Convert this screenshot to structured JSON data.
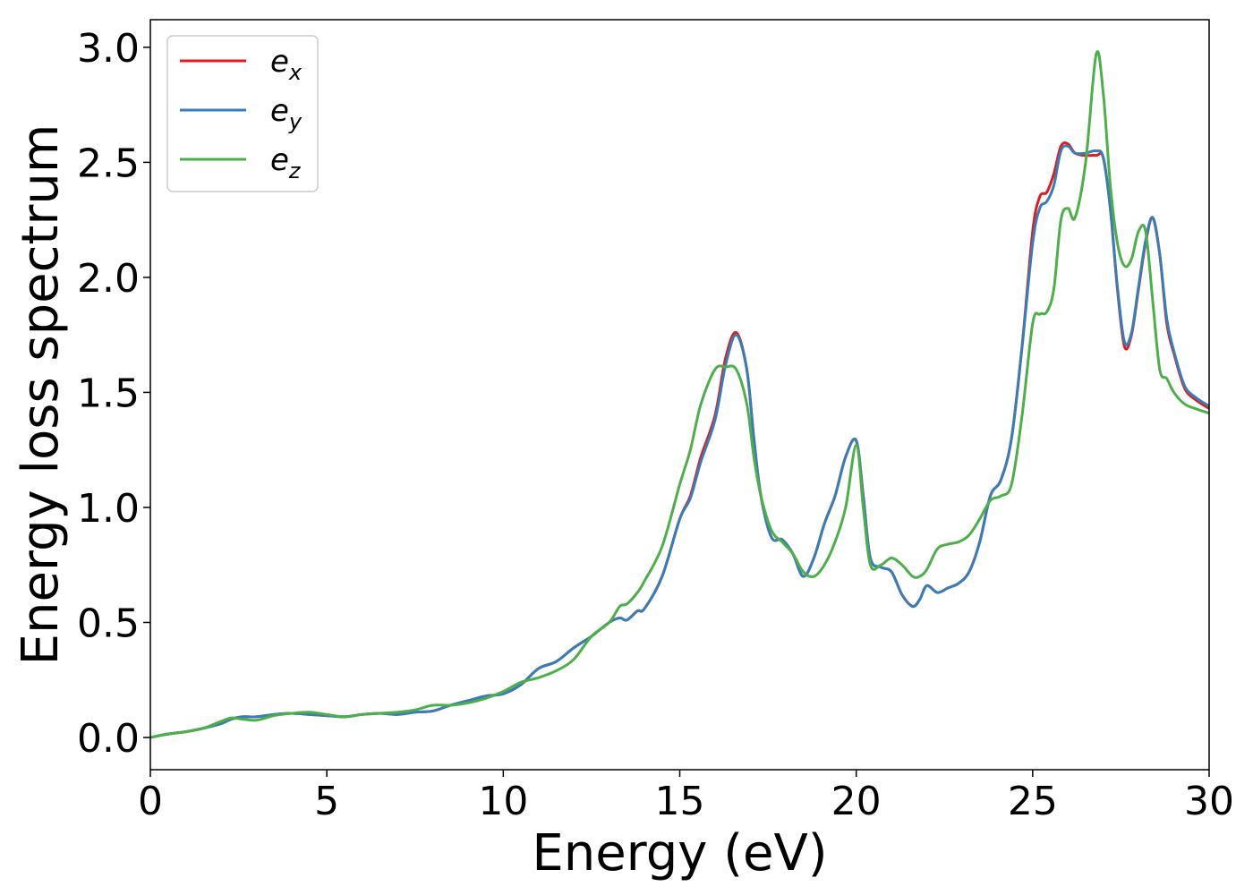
{
  "chart_data": {
    "type": "line",
    "xlabel": "Energy (eV)",
    "ylabel": "Energy loss spectrum",
    "xlim": [
      0,
      30
    ],
    "ylim": [
      -0.14,
      3.12
    ],
    "xticks": [
      0,
      5,
      10,
      15,
      20,
      25,
      30
    ],
    "xtick_labels": [
      "0",
      "5",
      "10",
      "15",
      "20",
      "25",
      "30"
    ],
    "yticks": [
      0.0,
      0.5,
      1.0,
      1.5,
      2.0,
      2.5,
      3.0
    ],
    "ytick_labels": [
      "0.0",
      "0.5",
      "1.0",
      "1.5",
      "2.0",
      "2.5",
      "3.0"
    ],
    "grid": false,
    "legend_position": "top-left",
    "series": [
      {
        "name": "e_x",
        "label_base": "e",
        "label_sub": "x",
        "color": "#e41a1c",
        "x": [
          0,
          0.5,
          1,
          1.5,
          2,
          2.3,
          2.6,
          3,
          3.5,
          4,
          4.5,
          5,
          5.5,
          6,
          6.5,
          7,
          7.5,
          8,
          8.5,
          9,
          9.5,
          10,
          10.5,
          11,
          11.5,
          12,
          12.5,
          13,
          13.3,
          13.5,
          13.8,
          14,
          14.5,
          15,
          15.3,
          15.6,
          16,
          16.3,
          16.6,
          16.9,
          17.1,
          17.3,
          17.6,
          17.9,
          18.2,
          18.5,
          18.8,
          19.1,
          19.4,
          19.7,
          20,
          20.2,
          20.4,
          20.7,
          21,
          21.3,
          21.6,
          21.8,
          22,
          22.3,
          22.6,
          22.9,
          23.2,
          23.5,
          23.8,
          24.1,
          24.4,
          24.7,
          25,
          25.2,
          25.4,
          25.6,
          25.8,
          26,
          26.2,
          26.5,
          26.8,
          27,
          27.2,
          27.4,
          27.6,
          27.8,
          28,
          28.2,
          28.4,
          28.6,
          28.8,
          29,
          29.3,
          29.6,
          30
        ],
        "y": [
          0,
          0.015,
          0.025,
          0.04,
          0.06,
          0.08,
          0.09,
          0.09,
          0.1,
          0.105,
          0.1,
          0.095,
          0.09,
          0.1,
          0.105,
          0.1,
          0.11,
          0.115,
          0.14,
          0.16,
          0.18,
          0.19,
          0.23,
          0.3,
          0.33,
          0.39,
          0.44,
          0.5,
          0.52,
          0.51,
          0.55,
          0.56,
          0.7,
          0.95,
          1.05,
          1.22,
          1.4,
          1.65,
          1.76,
          1.6,
          1.3,
          1.05,
          0.87,
          0.86,
          0.8,
          0.7,
          0.78,
          0.93,
          1.05,
          1.22,
          1.29,
          1.05,
          0.78,
          0.74,
          0.72,
          0.62,
          0.57,
          0.6,
          0.66,
          0.63,
          0.65,
          0.67,
          0.72,
          0.85,
          1.05,
          1.12,
          1.3,
          1.7,
          2.2,
          2.35,
          2.37,
          2.45,
          2.57,
          2.58,
          2.54,
          2.53,
          2.53,
          2.52,
          2.3,
          1.95,
          1.7,
          1.75,
          1.95,
          2.15,
          2.26,
          2.1,
          1.8,
          1.67,
          1.52,
          1.47,
          1.43
        ]
      },
      {
        "name": "e_y",
        "label_base": "e",
        "label_sub": "y",
        "color": "#377eb8",
        "x": [
          0,
          0.5,
          1,
          1.5,
          2,
          2.3,
          2.6,
          3,
          3.5,
          4,
          4.5,
          5,
          5.5,
          6,
          6.5,
          7,
          7.5,
          8,
          8.5,
          9,
          9.5,
          10,
          10.5,
          11,
          11.5,
          12,
          12.5,
          13,
          13.3,
          13.5,
          13.8,
          14,
          14.5,
          15,
          15.3,
          15.6,
          16,
          16.3,
          16.6,
          16.9,
          17.1,
          17.3,
          17.6,
          17.9,
          18.2,
          18.5,
          18.8,
          19.1,
          19.4,
          19.7,
          20,
          20.2,
          20.4,
          20.7,
          21,
          21.3,
          21.6,
          21.8,
          22,
          22.3,
          22.6,
          22.9,
          23.2,
          23.5,
          23.8,
          24.1,
          24.4,
          24.7,
          25,
          25.2,
          25.4,
          25.6,
          25.8,
          26,
          26.2,
          26.5,
          26.8,
          27,
          27.2,
          27.4,
          27.6,
          27.8,
          28,
          28.2,
          28.4,
          28.6,
          28.8,
          29,
          29.3,
          29.6,
          30
        ],
        "y": [
          0,
          0.015,
          0.025,
          0.04,
          0.06,
          0.08,
          0.09,
          0.09,
          0.1,
          0.105,
          0.1,
          0.095,
          0.09,
          0.1,
          0.105,
          0.1,
          0.11,
          0.115,
          0.14,
          0.16,
          0.18,
          0.19,
          0.23,
          0.3,
          0.33,
          0.39,
          0.44,
          0.5,
          0.52,
          0.51,
          0.55,
          0.56,
          0.7,
          0.95,
          1.04,
          1.2,
          1.38,
          1.62,
          1.75,
          1.6,
          1.3,
          1.05,
          0.87,
          0.86,
          0.8,
          0.7,
          0.78,
          0.93,
          1.05,
          1.22,
          1.29,
          1.05,
          0.78,
          0.74,
          0.72,
          0.62,
          0.57,
          0.6,
          0.66,
          0.63,
          0.65,
          0.67,
          0.72,
          0.85,
          1.05,
          1.12,
          1.3,
          1.7,
          2.15,
          2.3,
          2.33,
          2.4,
          2.55,
          2.57,
          2.54,
          2.54,
          2.55,
          2.52,
          2.3,
          1.96,
          1.72,
          1.76,
          1.96,
          2.16,
          2.26,
          2.1,
          1.82,
          1.68,
          1.53,
          1.48,
          1.44
        ]
      },
      {
        "name": "e_z",
        "label_base": "e",
        "label_sub": "z",
        "color": "#4daf4a",
        "x": [
          0,
          0.5,
          1,
          1.5,
          2,
          2.3,
          2.6,
          3,
          3.5,
          4,
          4.5,
          5,
          5.5,
          6,
          6.5,
          7,
          7.5,
          8,
          8.5,
          9,
          9.5,
          10,
          10.5,
          11,
          11.5,
          12,
          12.5,
          13,
          13.3,
          13.5,
          13.8,
          14,
          14.5,
          15,
          15.3,
          15.6,
          16,
          16.3,
          16.6,
          16.9,
          17.1,
          17.3,
          17.6,
          17.9,
          18.2,
          18.5,
          18.8,
          19.1,
          19.4,
          19.7,
          20,
          20.2,
          20.4,
          20.7,
          21,
          21.3,
          21.6,
          21.8,
          22,
          22.3,
          22.6,
          22.9,
          23.2,
          23.5,
          23.8,
          24.1,
          24.4,
          24.7,
          25,
          25.2,
          25.4,
          25.6,
          25.8,
          26,
          26.2,
          26.5,
          26.8,
          27,
          27.2,
          27.4,
          27.6,
          27.8,
          28,
          28.2,
          28.4,
          28.6,
          28.8,
          29,
          29.3,
          29.6,
          30
        ],
        "y": [
          0,
          0.015,
          0.025,
          0.04,
          0.07,
          0.085,
          0.08,
          0.075,
          0.095,
          0.105,
          0.11,
          0.1,
          0.09,
          0.1,
          0.105,
          0.11,
          0.12,
          0.14,
          0.14,
          0.15,
          0.17,
          0.2,
          0.24,
          0.26,
          0.29,
          0.34,
          0.44,
          0.5,
          0.57,
          0.58,
          0.63,
          0.68,
          0.83,
          1.1,
          1.25,
          1.45,
          1.6,
          1.61,
          1.6,
          1.45,
          1.22,
          1.05,
          0.9,
          0.85,
          0.8,
          0.72,
          0.7,
          0.75,
          0.85,
          1.0,
          1.27,
          1.0,
          0.75,
          0.75,
          0.78,
          0.75,
          0.7,
          0.7,
          0.73,
          0.82,
          0.84,
          0.85,
          0.88,
          0.95,
          1.03,
          1.05,
          1.1,
          1.4,
          1.8,
          1.84,
          1.85,
          1.95,
          2.25,
          2.3,
          2.26,
          2.5,
          2.97,
          2.8,
          2.4,
          2.15,
          2.05,
          2.08,
          2.2,
          2.2,
          1.9,
          1.6,
          1.56,
          1.5,
          1.45,
          1.43,
          1.41
        ]
      }
    ]
  }
}
